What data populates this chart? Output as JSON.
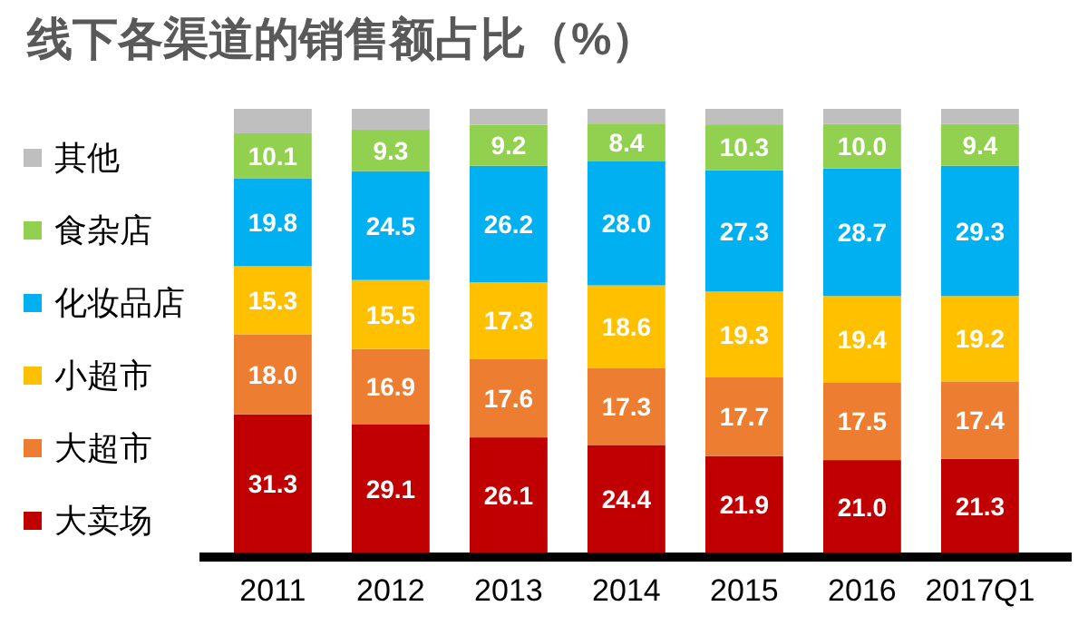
{
  "chart_data": {
    "type": "bar",
    "title": "线下各渠道的销售额占比（%）",
    "categories": [
      "2011",
      "2012",
      "2013",
      "2014",
      "2015",
      "2016",
      "2017Q1"
    ],
    "stacked": true,
    "legend": "left",
    "series": [
      {
        "name": "大卖场",
        "color": "#c00000",
        "values": [
          31.3,
          29.1,
          26.1,
          24.4,
          21.9,
          21.0,
          21.3
        ],
        "value_labels": [
          "31.3",
          "29.1",
          "26.1",
          "24.4",
          "21.9",
          "21.0",
          "21.3"
        ]
      },
      {
        "name": "大超市",
        "color": "#ed7d31",
        "values": [
          18.0,
          16.9,
          17.6,
          17.3,
          17.7,
          17.5,
          17.4
        ],
        "value_labels": [
          "18.0",
          "16.9",
          "17.6",
          "17.3",
          "17.7",
          "17.5",
          "17.4"
        ]
      },
      {
        "name": "小超市",
        "color": "#ffc000",
        "values": [
          15.3,
          15.5,
          17.3,
          18.6,
          19.3,
          19.4,
          19.2
        ],
        "value_labels": [
          "15.3",
          "15.5",
          "17.3",
          "18.6",
          "19.3",
          "19.4",
          "19.2"
        ]
      },
      {
        "name": "化妆品店",
        "color": "#00b0f0",
        "values": [
          19.8,
          24.5,
          26.2,
          28.0,
          27.3,
          28.7,
          29.3
        ],
        "value_labels": [
          "19.8",
          "24.5",
          "26.2",
          "28.0",
          "27.3",
          "28.7",
          "29.3"
        ]
      },
      {
        "name": "食杂店",
        "color": "#92d050",
        "values": [
          10.1,
          9.3,
          9.2,
          8.4,
          10.3,
          10.0,
          9.4
        ],
        "value_labels": [
          "10.1",
          "9.3",
          "9.2",
          "8.4",
          "10.3",
          "10.0",
          "9.4"
        ]
      },
      {
        "name": "其他",
        "color": "#bfbfbf",
        "values": [
          5.5,
          4.7,
          3.6,
          3.3,
          3.5,
          3.4,
          3.4
        ],
        "value_labels": [
          null,
          null,
          null,
          null,
          null,
          null,
          null
        ]
      }
    ]
  }
}
